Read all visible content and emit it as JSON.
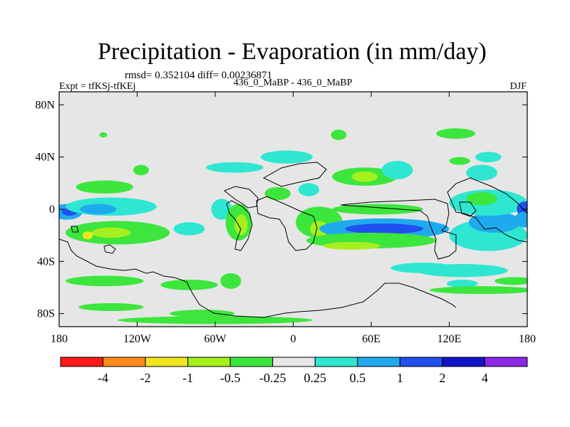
{
  "title": "Precipitation - Evaporation (in mm/day)",
  "stats": "rmsd= 0.352104 diff= 0.00236871",
  "expt": "Expt = tfKSj-tfKEj",
  "runs": "436_0_MaBP - 436_0_MaBP",
  "season": "DJF",
  "lat_ticks": [
    {
      "label": "80N",
      "lat": 80
    },
    {
      "label": "40N",
      "lat": 40
    },
    {
      "label": "0",
      "lat": 0
    },
    {
      "label": "40S",
      "lat": -40
    },
    {
      "label": "80S",
      "lat": -80
    }
  ],
  "lon_ticks": [
    {
      "label": "180",
      "lon": -180
    },
    {
      "label": "120W",
      "lon": -120
    },
    {
      "label": "60W",
      "lon": -60
    },
    {
      "label": "0",
      "lon": 0
    },
    {
      "label": "60E",
      "lon": 60
    },
    {
      "label": "120E",
      "lon": 120
    },
    {
      "label": "180",
      "lon": 180
    }
  ],
  "colorbar": {
    "colors": [
      "#ff1a1a",
      "#ff8c1a",
      "#f0e61e",
      "#a6f01e",
      "#3ce63c",
      "#e6e6e6",
      "#2ee6d2",
      "#20aaee",
      "#2050ee",
      "#1414c8",
      "#8c28e6"
    ],
    "labels": [
      "-4",
      "-2",
      "-1",
      "-0.5",
      "-0.25",
      "0.25",
      "0.5",
      "1",
      "2",
      "4"
    ]
  },
  "chart_data": {
    "type": "map-contour",
    "variable": "Precipitation - Evaporation difference",
    "units": "mm/day",
    "levels": [
      -4,
      -2,
      -1,
      -0.5,
      -0.25,
      0.25,
      0.5,
      1,
      2,
      4
    ],
    "lon_range": [
      -180,
      180
    ],
    "lat_range": [
      -90,
      90
    ],
    "background_color": "#e6e6e6",
    "anomalies": [
      {
        "lon": -174,
        "lat": -2,
        "rx": 12,
        "ry": 6,
        "color": "#20aaee"
      },
      {
        "lon": -172,
        "lat": -2,
        "rx": 6,
        "ry": 3,
        "color": "#2050ee"
      },
      {
        "lon": -135,
        "lat": -18,
        "rx": 40,
        "ry": 9,
        "color": "#3ce63c"
      },
      {
        "lon": -140,
        "lat": -18,
        "rx": 15,
        "ry": 4,
        "color": "#a6f01e"
      },
      {
        "lon": -158,
        "lat": -20,
        "rx": 4,
        "ry": 3,
        "color": "#f0e61e"
      },
      {
        "lon": -140,
        "lat": 2,
        "rx": 35,
        "ry": 7,
        "color": "#2ee6d2"
      },
      {
        "lon": -150,
        "lat": 0,
        "rx": 14,
        "ry": 4,
        "color": "#20aaee"
      },
      {
        "lon": -145,
        "lat": 17,
        "rx": 22,
        "ry": 5,
        "color": "#3ce63c"
      },
      {
        "lon": -117,
        "lat": 30,
        "rx": 6,
        "ry": 4,
        "color": "#3ce63c"
      },
      {
        "lon": -146,
        "lat": 57,
        "rx": 3,
        "ry": 2,
        "color": "#3ce63c"
      },
      {
        "lon": -80,
        "lat": -15,
        "rx": 12,
        "ry": 5,
        "color": "#2ee6d2"
      },
      {
        "lon": -145,
        "lat": -55,
        "rx": 30,
        "ry": 4,
        "color": "#3ce63c"
      },
      {
        "lon": -80,
        "lat": -58,
        "rx": 22,
        "ry": 4,
        "color": "#3ce63c"
      },
      {
        "lon": -140,
        "lat": -75,
        "rx": 25,
        "ry": 3,
        "color": "#3ce63c"
      },
      {
        "lon": -70,
        "lat": -80,
        "rx": 25,
        "ry": 3,
        "color": "#3ce63c"
      },
      {
        "lon": -60,
        "lat": -85,
        "rx": 75,
        "ry": 3,
        "color": "#3ce63c"
      },
      {
        "lon": -48,
        "lat": -55,
        "rx": 8,
        "ry": 6,
        "color": "#3ce63c"
      },
      {
        "lon": -45,
        "lat": 32,
        "rx": 22,
        "ry": 4,
        "color": "#2ee6d2"
      },
      {
        "lon": -55,
        "lat": 0,
        "rx": 8,
        "ry": 8,
        "color": "#2ee6d2"
      },
      {
        "lon": -42,
        "lat": -10,
        "rx": 10,
        "ry": 14,
        "color": "#3ce63c"
      },
      {
        "lon": -40,
        "lat": -12,
        "rx": 5,
        "ry": 8,
        "color": "#a6f01e"
      },
      {
        "lon": -5,
        "lat": 40,
        "rx": 20,
        "ry": 5,
        "color": "#2ee6d2"
      },
      {
        "lon": -12,
        "lat": 12,
        "rx": 10,
        "ry": 5,
        "color": "#3ce63c"
      },
      {
        "lon": 12,
        "lat": 15,
        "rx": 8,
        "ry": 5,
        "color": "#2ee6d2"
      },
      {
        "lon": 20,
        "lat": -10,
        "rx": 18,
        "ry": 12,
        "color": "#3ce63c"
      },
      {
        "lon": 20,
        "lat": -15,
        "rx": 7,
        "ry": 6,
        "color": "#a6f01e"
      },
      {
        "lon": 35,
        "lat": 57,
        "rx": 6,
        "ry": 4,
        "color": "#3ce63c"
      },
      {
        "lon": 55,
        "lat": 25,
        "rx": 25,
        "ry": 7,
        "color": "#3ce63c"
      },
      {
        "lon": 55,
        "lat": 25,
        "rx": 10,
        "ry": 4,
        "color": "#a6f01e"
      },
      {
        "lon": 80,
        "lat": 30,
        "rx": 12,
        "ry": 7,
        "color": "#2ee6d2"
      },
      {
        "lon": 65,
        "lat": 0,
        "rx": 35,
        "ry": 4,
        "color": "#3ce63c"
      },
      {
        "lon": 70,
        "lat": -15,
        "rx": 50,
        "ry": 8,
        "color": "#20aaee"
      },
      {
        "lon": 70,
        "lat": -15,
        "rx": 30,
        "ry": 4,
        "color": "#2050ee"
      },
      {
        "lon": 60,
        "lat": -24,
        "rx": 50,
        "ry": 6,
        "color": "#3ce63c"
      },
      {
        "lon": 45,
        "lat": -28,
        "rx": 22,
        "ry": 3,
        "color": "#a6f01e"
      },
      {
        "lon": 100,
        "lat": -45,
        "rx": 25,
        "ry": 4,
        "color": "#2ee6d2"
      },
      {
        "lon": 130,
        "lat": -47,
        "rx": 35,
        "ry": 5,
        "color": "#2ee6d2"
      },
      {
        "lon": 150,
        "lat": -20,
        "rx": 30,
        "ry": 12,
        "color": "#2ee6d2"
      },
      {
        "lon": 155,
        "lat": -10,
        "rx": 20,
        "ry": 8,
        "color": "#20aaee"
      },
      {
        "lon": 150,
        "lat": 5,
        "rx": 30,
        "ry": 10,
        "color": "#2ee6d2"
      },
      {
        "lon": 145,
        "lat": 8,
        "rx": 12,
        "ry": 5,
        "color": "#3ce63c"
      },
      {
        "lon": 178,
        "lat": 0,
        "rx": 6,
        "ry": 6,
        "color": "#2050ee"
      },
      {
        "lon": 178,
        "lat": -8,
        "rx": 8,
        "ry": 6,
        "color": "#20aaee"
      },
      {
        "lon": 130,
        "lat": -57,
        "rx": 12,
        "ry": 3,
        "color": "#2ee6d2"
      },
      {
        "lon": 145,
        "lat": -62,
        "rx": 40,
        "ry": 3,
        "color": "#3ce63c"
      },
      {
        "lon": 170,
        "lat": -55,
        "rx": 15,
        "ry": 3,
        "color": "#3ce63c"
      },
      {
        "lon": 145,
        "lat": 28,
        "rx": 12,
        "ry": 6,
        "color": "#2ee6d2"
      },
      {
        "lon": 150,
        "lat": 40,
        "rx": 10,
        "ry": 4,
        "color": "#2ee6d2"
      },
      {
        "lon": 125,
        "lat": 58,
        "rx": 15,
        "ry": 4,
        "color": "#3ce63c"
      },
      {
        "lon": 128,
        "lat": 37,
        "rx": 8,
        "ry": 3,
        "color": "#3ce63c"
      }
    ]
  }
}
